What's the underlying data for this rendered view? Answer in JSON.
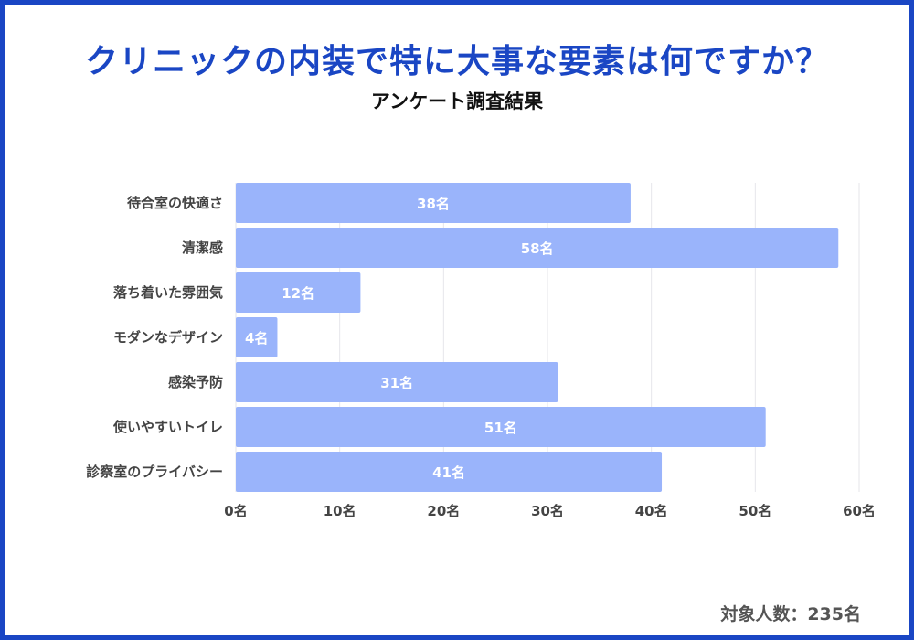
{
  "title": "クリニックの内装で特に大事な要素は何ですか？",
  "subtitle": "アンケート調査結果",
  "footer": "対象人数：235名",
  "colors": {
    "border": "#1a46c4",
    "title": "#1a46c4",
    "bar": "#9ab4fb",
    "grid": "#e6e6ea"
  },
  "chart_data": {
    "type": "bar",
    "orientation": "horizontal",
    "categories": [
      "待合室の快適さ",
      "清潔感",
      "落ち着いた雰囲気",
      "モダンなデザイン",
      "感染予防",
      "使いやすいトイレ",
      "診察室のプライバシー"
    ],
    "values": [
      38,
      58,
      12,
      4,
      31,
      51,
      41
    ],
    "data_labels": [
      "38名",
      "58名",
      "12名",
      "4名",
      "31名",
      "51名",
      "41名"
    ],
    "xlim": [
      0,
      60
    ],
    "xticks": [
      0,
      10,
      20,
      30,
      40,
      50,
      60
    ],
    "xtick_labels": [
      "0名",
      "10名",
      "20名",
      "30名",
      "40名",
      "50名",
      "60名"
    ],
    "grid": true,
    "unit": "名"
  }
}
